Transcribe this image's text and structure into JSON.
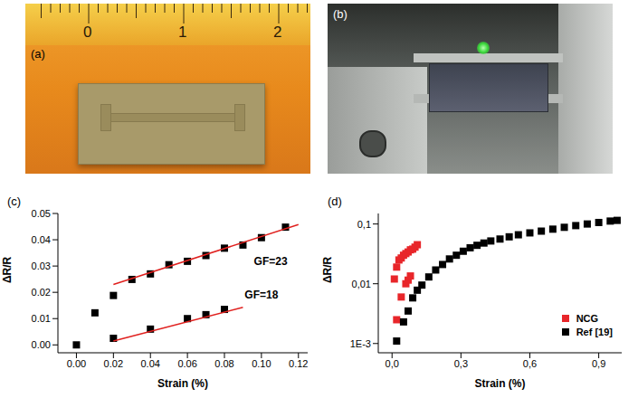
{
  "photos": [
    {
      "type": "photo",
      "title": "(a)",
      "ruler_labels": [
        0,
        1,
        2
      ]
    },
    {
      "type": "photo",
      "title": "(b)"
    }
  ],
  "chart_data": [
    {
      "type": "scatter",
      "title": "(c)",
      "x_label": "Strain (%)",
      "y_label": "ΔR/R",
      "xlim": [
        -0.01,
        0.125
      ],
      "ylim": [
        -0.003,
        0.05
      ],
      "xticks": [
        {
          "value": 0,
          "label": "0.00"
        },
        {
          "value": 0.02,
          "label": "0.02"
        },
        {
          "value": 0.04,
          "label": "0.04"
        },
        {
          "value": 0.06,
          "label": "0.06"
        },
        {
          "value": 0.08,
          "label": "0.08"
        },
        {
          "value": 0.1,
          "label": "0.10"
        },
        {
          "value": 0.12,
          "label": "0.12"
        }
      ],
      "yticks": [
        {
          "value": 0,
          "label": "0.00"
        },
        {
          "value": 0.01,
          "label": "0.01"
        },
        {
          "value": 0.02,
          "label": "0.02"
        },
        {
          "value": 0.03,
          "label": "0.03"
        },
        {
          "value": 0.04,
          "label": "0.04"
        },
        {
          "value": 0.05,
          "label": "0.05"
        }
      ],
      "grid": false,
      "series": [
        {
          "color": "#000000",
          "marker": "square",
          "x": [
            0,
            0.01,
            0.02,
            0.03,
            0.04,
            0.05,
            0.06,
            0.07,
            0.08,
            0.09,
            0.1,
            0.113
          ],
          "values": [
            0,
            0.0122,
            0.0188,
            0.0249,
            0.027,
            0.0305,
            0.0318,
            0.034,
            0.0368,
            0.038,
            0.0408,
            0.0448
          ]
        },
        {
          "color": "#000000",
          "marker": "square",
          "x": [
            0.02,
            0.04,
            0.06,
            0.07,
            0.08
          ],
          "values": [
            0.0025,
            0.006,
            0.01,
            0.0115,
            0.0135
          ]
        },
        {
          "type": "line",
          "color": "#e0201e",
          "line_style": "solid",
          "x": [
            0.02,
            0.12
          ],
          "values": [
            0.023,
            0.0458
          ]
        },
        {
          "type": "line",
          "color": "#e0201e",
          "line_style": "solid",
          "x": [
            0.02,
            0.09
          ],
          "values": [
            0.0015,
            0.0143
          ]
        }
      ],
      "annotations": [
        {
          "text": "GF=23",
          "x": 0.105,
          "y": 0.032
        },
        {
          "text": "GF=18",
          "x": 0.1,
          "y": 0.019
        }
      ]
    },
    {
      "type": "scatter",
      "title": "(d)",
      "x_label": "Strain (%)",
      "y_label": "ΔR/R",
      "log": "y",
      "xlim": [
        -0.06,
        1.0
      ],
      "ylim": [
        0.0007,
        0.15
      ],
      "xticks": [
        {
          "value": 0,
          "label": "0,0"
        },
        {
          "value": 0.3,
          "label": "0,3"
        },
        {
          "value": 0.6,
          "label": "0,6"
        },
        {
          "value": 0.9,
          "label": "0,9"
        }
      ],
      "yticks": [
        {
          "value": 0.001,
          "label": "1E-3"
        },
        {
          "value": 0.01,
          "label": "0,01"
        },
        {
          "value": 0.1,
          "label": "0,1"
        }
      ],
      "grid": false,
      "legend": "bottom-right",
      "series": [
        {
          "name": "NCG",
          "color": "#e8262a",
          "marker": "square",
          "x": [
            0.01,
            0.02,
            0.02,
            0.03,
            0.04,
            0.04,
            0.05,
            0.06,
            0.06,
            0.07,
            0.07,
            0.08,
            0.08,
            0.09,
            0.1,
            0.11
          ],
          "values": [
            0.012,
            0.0025,
            0.019,
            0.025,
            0.006,
            0.027,
            0.03,
            0.01,
            0.032,
            0.0115,
            0.034,
            0.0135,
            0.037,
            0.038,
            0.041,
            0.045
          ]
        },
        {
          "name": "Ref [19]",
          "color": "#000000",
          "marker": "square",
          "x": [
            0.02,
            0.05,
            0.07,
            0.09,
            0.11,
            0.13,
            0.16,
            0.19,
            0.22,
            0.25,
            0.28,
            0.31,
            0.34,
            0.37,
            0.4,
            0.43,
            0.47,
            0.51,
            0.55,
            0.6,
            0.65,
            0.7,
            0.75,
            0.8,
            0.85,
            0.9,
            0.95,
            0.98
          ],
          "values": [
            0.0011,
            0.0023,
            0.0035,
            0.0058,
            0.0078,
            0.0095,
            0.013,
            0.017,
            0.021,
            0.026,
            0.03,
            0.035,
            0.04,
            0.044,
            0.048,
            0.052,
            0.056,
            0.061,
            0.066,
            0.071,
            0.076,
            0.082,
            0.088,
            0.094,
            0.1,
            0.106,
            0.112,
            0.115
          ]
        }
      ]
    }
  ]
}
